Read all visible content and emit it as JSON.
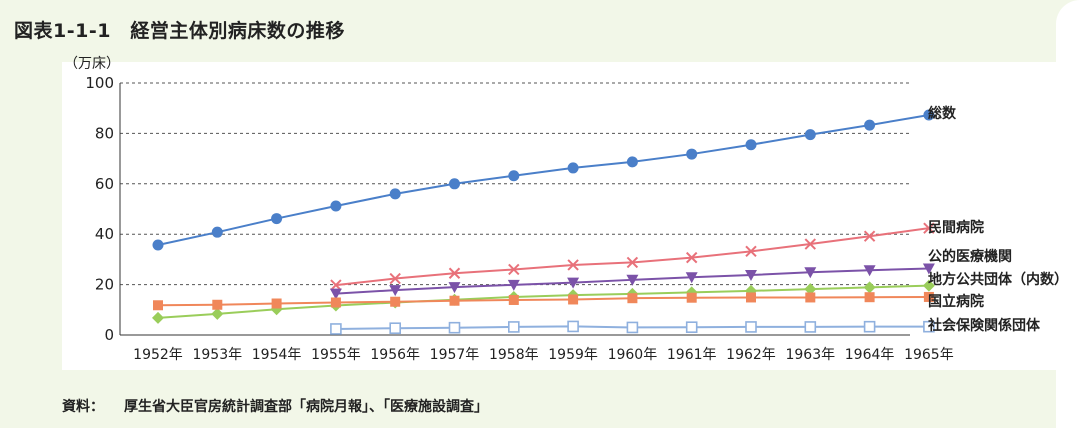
{
  "title": "図表1-1-1　経営主体別病床数の推移",
  "source": {
    "label": "資料：",
    "text": "厚生省大臣官房統計調査部「病院月報」、「医療施設調査」"
  },
  "chart_data": {
    "type": "line",
    "title": "",
    "xlabel": "",
    "ylabel": "（万床）",
    "ylim": [
      0,
      100
    ],
    "yticks": [
      0,
      20,
      40,
      60,
      80,
      100
    ],
    "grid": "horizontal-dashed",
    "categories": [
      "1952年",
      "1953年",
      "1954年",
      "1955年",
      "1956年",
      "1957年",
      "1958年",
      "1959年",
      "1960年",
      "1961年",
      "1962年",
      "1963年",
      "1964年",
      "1965年"
    ],
    "series": [
      {
        "name": "総数",
        "color": "#4a7fc9",
        "marker": "circle",
        "values": [
          35.7,
          40.8,
          46.2,
          51.2,
          56.0,
          60.0,
          63.2,
          66.3,
          68.7,
          71.8,
          75.5,
          79.5,
          83.3,
          87.3
        ]
      },
      {
        "name": "民間病院",
        "color": "#e8717a",
        "marker": "x",
        "values": [
          null,
          null,
          null,
          19.8,
          22.4,
          24.5,
          26.0,
          27.8,
          28.8,
          30.7,
          33.2,
          36.1,
          39.2,
          42.4
        ]
      },
      {
        "name": "公的医療機関",
        "color": "#7b52a8",
        "marker": "triangle-down",
        "values": [
          null,
          null,
          null,
          16.4,
          17.8,
          19.0,
          19.9,
          20.8,
          21.9,
          22.9,
          23.8,
          24.9,
          25.7,
          26.4
        ]
      },
      {
        "name": "地方公共団体（内数）",
        "color": "#9acd5a",
        "marker": "diamond",
        "values": [
          6.8,
          8.4,
          10.2,
          11.7,
          12.9,
          14.0,
          15.1,
          15.8,
          16.3,
          16.9,
          17.5,
          18.2,
          18.9,
          19.6
        ]
      },
      {
        "name": "国立病院",
        "color": "#f0875a",
        "marker": "square",
        "values": [
          11.8,
          12.0,
          12.5,
          12.9,
          13.2,
          13.6,
          13.9,
          14.1,
          14.6,
          14.8,
          14.9,
          14.9,
          15.0,
          15.1
        ]
      },
      {
        "name": "社会保険関係団体",
        "color": "#8fb0de",
        "marker": "open-square",
        "values": [
          null,
          null,
          null,
          2.4,
          2.7,
          2.9,
          3.2,
          3.4,
          3.0,
          3.1,
          3.2,
          3.2,
          3.3,
          3.3
        ]
      }
    ]
  }
}
